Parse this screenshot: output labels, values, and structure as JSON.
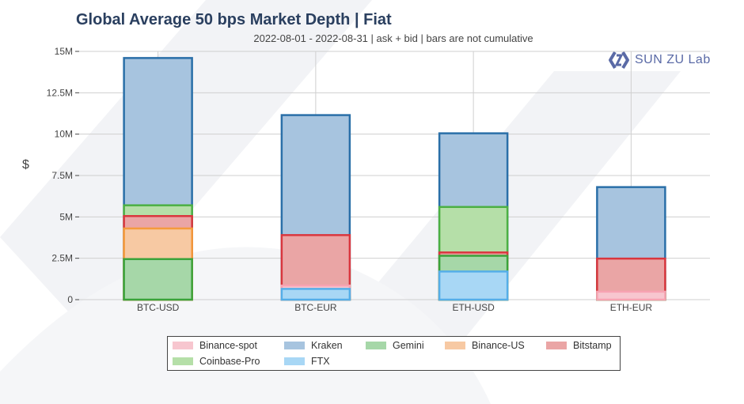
{
  "page": {
    "title": "Global Average 50 bps Market Depth | Fiat",
    "subtitle": "2022-08-01 - 2022-08-31 | ask + bid | bars are not cumulative",
    "logo_text": "SUN ZU",
    "logo_suffix": "Lab"
  },
  "chart_data": {
    "type": "bar",
    "title": "Global Average 50 bps Market Depth | Fiat",
    "subtitle": "2022-08-01 - 2022-08-31 | ask + bid | bars are not cumulative",
    "xlabel": "",
    "ylabel": "$",
    "ylim": [
      0,
      15000000
    ],
    "yticks": [
      0,
      2500000,
      5000000,
      7500000,
      10000000,
      12500000,
      15000000
    ],
    "ytick_labels": [
      "0",
      "2.5M",
      "5M",
      "7.5M",
      "10M",
      "12.5M",
      "15M"
    ],
    "categories": [
      "BTC-USD",
      "BTC-EUR",
      "ETH-USD",
      "ETH-EUR"
    ],
    "grid": true,
    "legend_position": "bottom",
    "note": "bars are not cumulative",
    "series": [
      {
        "name": "Binance-spot",
        "fill": "#f7c6cf",
        "stroke": "#f7a3b2",
        "values": [
          0,
          850000,
          0,
          480000
        ]
      },
      {
        "name": "Kraken",
        "fill": "#a7c4df",
        "stroke": "#2a6fa8",
        "values": [
          14600000,
          11150000,
          10050000,
          6800000
        ]
      },
      {
        "name": "Gemini",
        "fill": "#a6d7a8",
        "stroke": "#3aa33a",
        "values": [
          2450000,
          150000,
          2650000,
          350000
        ]
      },
      {
        "name": "Binance-US",
        "fill": "#f7c9a3",
        "stroke": "#f59a3c",
        "values": [
          4300000,
          0,
          2200000,
          0
        ]
      },
      {
        "name": "Bitstamp",
        "fill": "#eaa5a5",
        "stroke": "#d9363e",
        "values": [
          5050000,
          3900000,
          2850000,
          2480000
        ]
      },
      {
        "name": "Coinbase-Pro",
        "fill": "#b5dfa8",
        "stroke": "#4cb043",
        "values": [
          5700000,
          1750000,
          5600000,
          1700000
        ]
      },
      {
        "name": "FTX",
        "fill": "#a8d7f5",
        "stroke": "#55aee8",
        "values": [
          0,
          650000,
          1700000,
          0
        ]
      }
    ],
    "draw_order": [
      "Kraken",
      "Coinbase-Pro",
      "Bitstamp",
      "Binance-US",
      "Gemini",
      "Binance-spot",
      "FTX"
    ]
  }
}
